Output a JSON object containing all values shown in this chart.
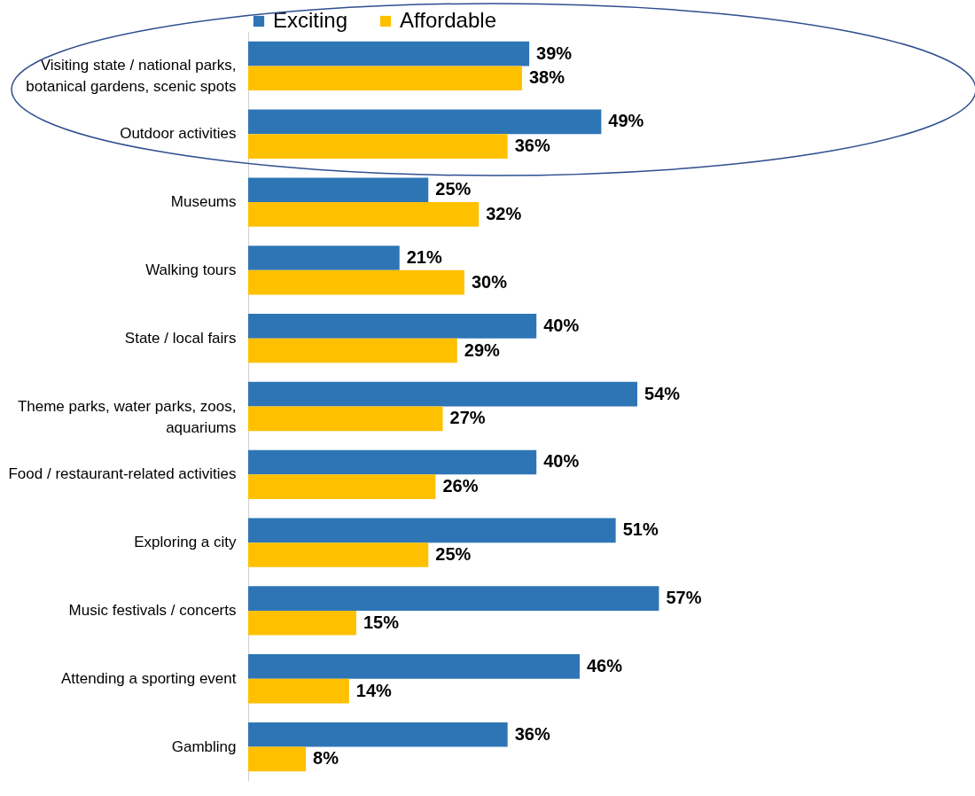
{
  "chart_data": {
    "type": "bar",
    "orientation": "horizontal",
    "legend": "top",
    "categories": [
      "Visiting state / national parks, botanical gardens, scenic spots",
      "Outdoor activities",
      "Museums",
      "Walking tours",
      "State / local fairs",
      "Theme parks, water parks, zoos, aquariums",
      "Food / restaurant-related activities",
      "Exploring a city",
      "Music festivals / concerts",
      "Attending a sporting event",
      "Gambling"
    ],
    "series": [
      {
        "name": "Exciting",
        "color": "#2e75b6",
        "values": [
          39,
          49,
          25,
          21,
          40,
          54,
          40,
          51,
          57,
          46,
          36
        ],
        "value_labels": [
          "39%",
          "49%",
          "25%",
          "21%",
          "40%",
          "54%",
          "40%",
          "51%",
          "57%",
          "46%",
          "36%"
        ]
      },
      {
        "name": "Affordable",
        "color": "#ffc000",
        "values": [
          38,
          36,
          32,
          30,
          29,
          27,
          26,
          25,
          15,
          14,
          8
        ],
        "value_labels": [
          "38%",
          "36%",
          "32%",
          "30%",
          "29%",
          "27%",
          "26%",
          "25%",
          "15%",
          "14%",
          "8%"
        ]
      }
    ]
  }
}
